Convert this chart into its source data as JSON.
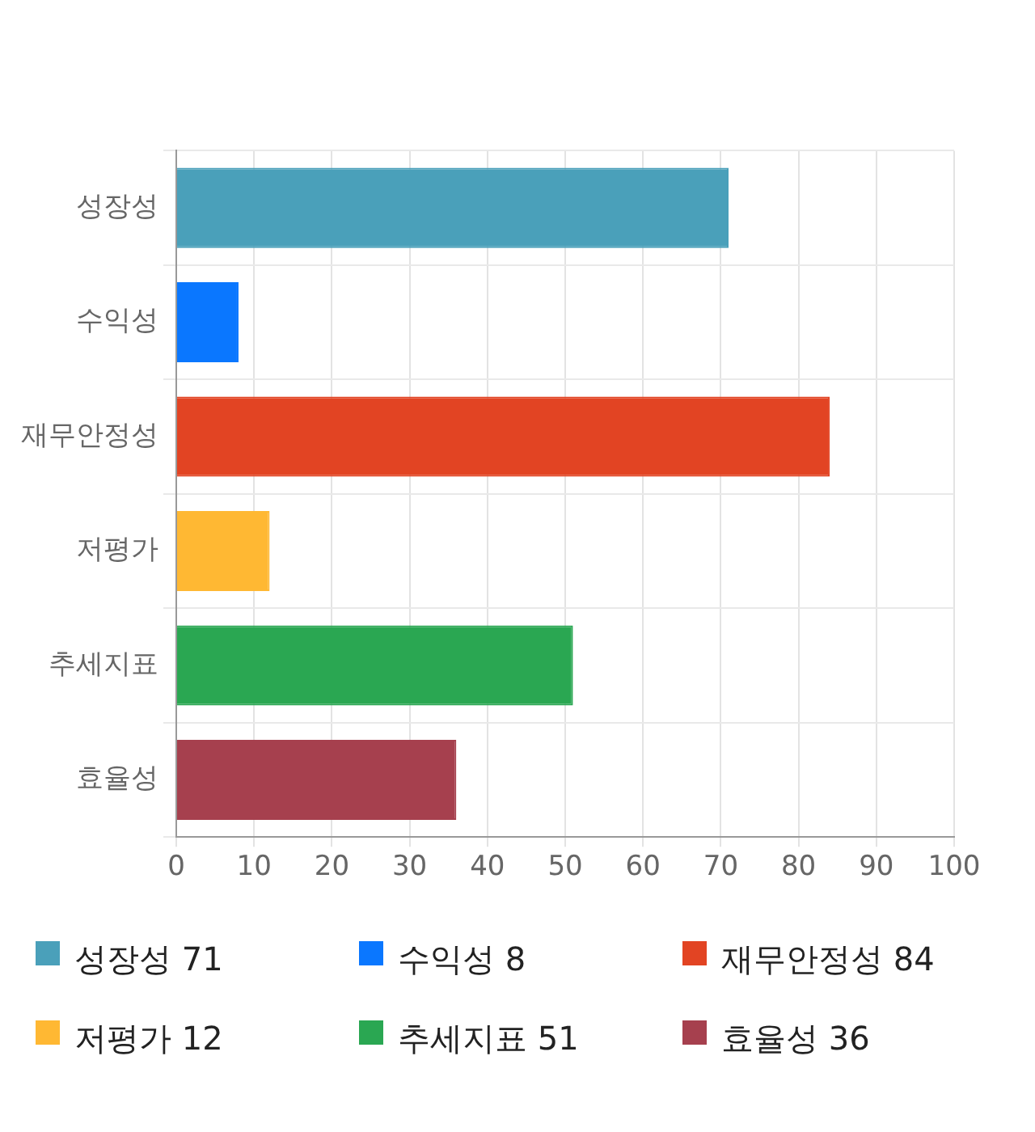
{
  "chart_data": {
    "type": "bar",
    "orientation": "horizontal",
    "categories": [
      "성장성",
      "수익성",
      "재무안정성",
      "저평가",
      "추세지표",
      "효율성"
    ],
    "values": [
      71,
      8,
      84,
      12,
      51,
      36
    ],
    "colors": [
      "#4aa0ba",
      "#0a77ff",
      "#e24423",
      "#ffb833",
      "#2aa752",
      "#a6404e"
    ],
    "xlim": [
      0,
      100
    ],
    "xticks": [
      0,
      10,
      20,
      30,
      40,
      50,
      60,
      70,
      80,
      90,
      100
    ],
    "grid": true,
    "annotations": [
      "성장성 71",
      "수익성 8",
      "재무안정성 84",
      "저평가 12",
      "추세지표 51",
      "효율성 36"
    ]
  }
}
